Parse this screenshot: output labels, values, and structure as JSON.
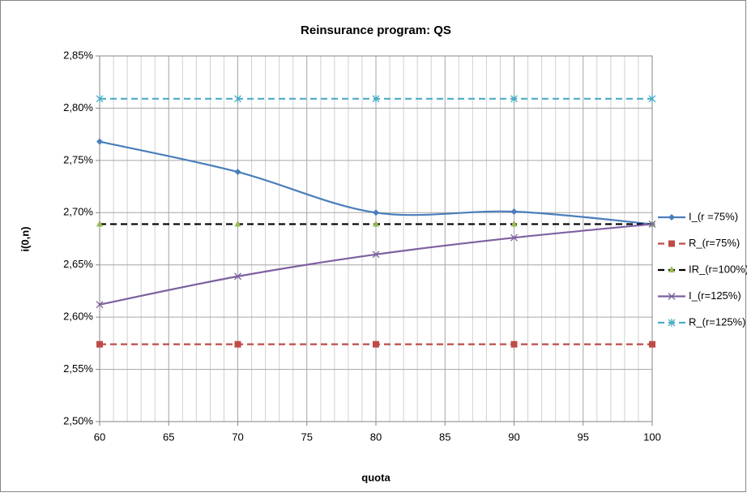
{
  "chart_data": {
    "type": "line",
    "title": "Reinsurance program: QS",
    "x_label": "quota",
    "y_label": "i(0,n)",
    "x": [
      60,
      70,
      80,
      90,
      100
    ],
    "xlim": [
      60,
      100
    ],
    "xticks": [
      60,
      65,
      70,
      75,
      80,
      85,
      90,
      95,
      100
    ],
    "ylim": [
      2.5,
      2.85
    ],
    "yticks": [
      {
        "value": 2.5,
        "label": "2,50%"
      },
      {
        "value": 2.55,
        "label": "2,55%"
      },
      {
        "value": 2.6,
        "label": "2,60%"
      },
      {
        "value": 2.65,
        "label": "2,65%"
      },
      {
        "value": 2.7,
        "label": "2,70%"
      },
      {
        "value": 2.75,
        "label": "2,75%"
      },
      {
        "value": 2.8,
        "label": "2,80%"
      },
      {
        "value": 2.85,
        "label": "2,85%"
      }
    ],
    "grid": true,
    "minor_grid_x": true,
    "legend": "right",
    "series": [
      {
        "name": "I_(r =75%)",
        "color": "#4a7ebb",
        "marker": "diamond",
        "dashed": false,
        "smooth": true,
        "values": [
          2.768,
          2.739,
          2.7,
          2.701,
          2.689
        ]
      },
      {
        "name": "R_(r=75%)",
        "color": "#be4b48",
        "marker": "square",
        "dashed": true,
        "smooth": false,
        "values": [
          2.574,
          2.574,
          2.574,
          2.574,
          2.574
        ]
      },
      {
        "name": "IR_(r=100%)",
        "color": "#000000",
        "marker_color": "#98b954",
        "marker": "triangle",
        "dashed": true,
        "smooth": false,
        "values": [
          2.689,
          2.689,
          2.689,
          2.689,
          2.689
        ]
      },
      {
        "name": "I_(r=125%)",
        "color": "#7d60a0",
        "marker": "x",
        "dashed": false,
        "smooth": true,
        "values": [
          2.612,
          2.639,
          2.66,
          2.676,
          2.689
        ]
      },
      {
        "name": "R_(r=125%)",
        "color": "#4bacc6",
        "marker": "star",
        "dashed": true,
        "smooth": false,
        "values": [
          2.809,
          2.809,
          2.809,
          2.809,
          2.809
        ]
      }
    ]
  }
}
